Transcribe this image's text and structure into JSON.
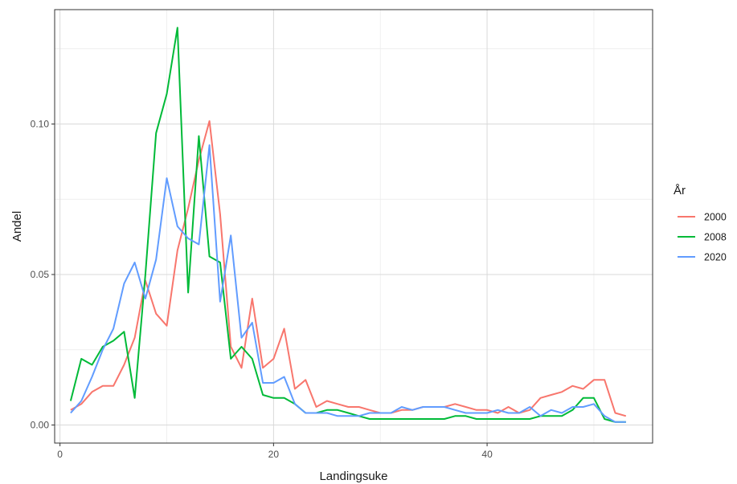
{
  "chart_data": {
    "type": "line",
    "title": "",
    "xlabel": "Landingsuke",
    "ylabel": "Andel",
    "xlim": [
      -0.5,
      55.5
    ],
    "ylim": [
      -0.006,
      0.138
    ],
    "x_ticks": [
      0,
      20,
      40
    ],
    "x_tick_labels": [
      "0",
      "20",
      "40"
    ],
    "y_ticks": [
      0.0,
      0.05,
      0.1
    ],
    "y_tick_labels": [
      "0.00",
      "0.05",
      "0.10"
    ],
    "grid": true,
    "legend": {
      "title": "År",
      "position": "right"
    },
    "series": [
      {
        "name": "2000",
        "color": "#F8766D",
        "x": [
          1,
          2,
          3,
          4,
          5,
          6,
          7,
          8,
          9,
          10,
          11,
          12,
          13,
          14,
          15,
          16,
          17,
          18,
          19,
          20,
          21,
          22,
          23,
          24,
          25,
          26,
          27,
          28,
          29,
          30,
          31,
          32,
          33,
          34,
          35,
          36,
          37,
          38,
          39,
          40,
          41,
          42,
          43,
          44,
          45,
          46,
          47,
          48,
          49,
          50,
          51,
          52,
          53
        ],
        "y": [
          0.005,
          0.007,
          0.011,
          0.013,
          0.013,
          0.02,
          0.029,
          0.048,
          0.037,
          0.033,
          0.058,
          0.072,
          0.088,
          0.101,
          0.07,
          0.026,
          0.019,
          0.042,
          0.019,
          0.022,
          0.032,
          0.012,
          0.015,
          0.006,
          0.008,
          0.007,
          0.006,
          0.006,
          0.005,
          0.004,
          0.004,
          0.005,
          0.005,
          0.006,
          0.006,
          0.006,
          0.007,
          0.006,
          0.005,
          0.005,
          0.004,
          0.006,
          0.004,
          0.005,
          0.009,
          0.01,
          0.011,
          0.013,
          0.012,
          0.015,
          0.015,
          0.004,
          0.003
        ]
      },
      {
        "name": "2008",
        "color": "#00BA38",
        "x": [
          1,
          2,
          3,
          4,
          5,
          6,
          7,
          8,
          9,
          10,
          11,
          12,
          13,
          14,
          15,
          16,
          17,
          18,
          19,
          20,
          21,
          22,
          23,
          24,
          25,
          26,
          27,
          28,
          29,
          30,
          31,
          32,
          33,
          34,
          35,
          36,
          37,
          38,
          39,
          40,
          41,
          42,
          43,
          44,
          45,
          46,
          47,
          48,
          49,
          50,
          51,
          52,
          53
        ],
        "y": [
          0.008,
          0.022,
          0.02,
          0.026,
          0.028,
          0.031,
          0.009,
          0.05,
          0.097,
          0.11,
          0.132,
          0.044,
          0.096,
          0.056,
          0.054,
          0.022,
          0.026,
          0.022,
          0.01,
          0.009,
          0.009,
          0.007,
          0.004,
          0.004,
          0.005,
          0.005,
          0.004,
          0.003,
          0.002,
          0.002,
          0.002,
          0.002,
          0.002,
          0.002,
          0.002,
          0.002,
          0.003,
          0.003,
          0.002,
          0.002,
          0.002,
          0.002,
          0.002,
          0.002,
          0.003,
          0.003,
          0.003,
          0.005,
          0.009,
          0.009,
          0.002,
          0.001,
          0.001
        ]
      },
      {
        "name": "2020",
        "color": "#619CFF",
        "x": [
          1,
          2,
          3,
          4,
          5,
          6,
          7,
          8,
          9,
          10,
          11,
          12,
          13,
          14,
          15,
          16,
          17,
          18,
          19,
          20,
          21,
          22,
          23,
          24,
          25,
          26,
          27,
          28,
          29,
          30,
          31,
          32,
          33,
          34,
          35,
          36,
          37,
          38,
          39,
          40,
          41,
          42,
          43,
          44,
          45,
          46,
          47,
          48,
          49,
          50,
          51,
          52,
          53
        ],
        "y": [
          0.004,
          0.008,
          0.016,
          0.025,
          0.032,
          0.047,
          0.054,
          0.042,
          0.055,
          0.082,
          0.066,
          0.062,
          0.06,
          0.093,
          0.041,
          0.063,
          0.029,
          0.034,
          0.014,
          0.014,
          0.016,
          0.007,
          0.004,
          0.004,
          0.004,
          0.003,
          0.003,
          0.003,
          0.004,
          0.004,
          0.004,
          0.006,
          0.005,
          0.006,
          0.006,
          0.006,
          0.005,
          0.004,
          0.004,
          0.004,
          0.005,
          0.004,
          0.004,
          0.006,
          0.003,
          0.005,
          0.004,
          0.006,
          0.006,
          0.007,
          0.003,
          0.001,
          0.001
        ]
      }
    ]
  }
}
